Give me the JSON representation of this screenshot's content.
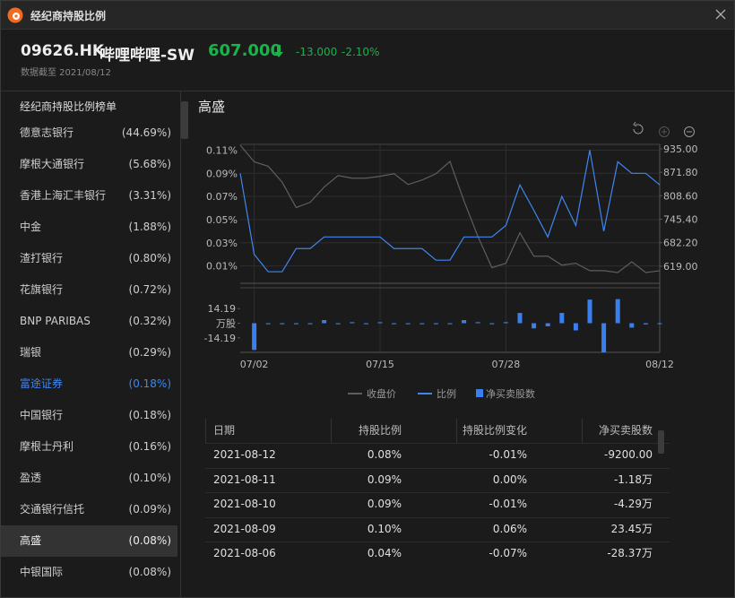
{
  "window": {
    "title": "经纪商持股比例"
  },
  "quote": {
    "symbol": "09626.HK",
    "name": "哔哩哔哩-SW",
    "price": "607.000",
    "change": "-13.000",
    "change_pct": "-2.10%",
    "as_of": "数据截至 2021/08/12"
  },
  "broker_list": {
    "title": "经纪商持股比例榜单",
    "items": [
      {
        "name": "德意志银行",
        "ratio": "(44.69%)"
      },
      {
        "name": "摩根大通银行",
        "ratio": "(5.68%)"
      },
      {
        "name": "香港上海汇丰银行",
        "ratio": "(3.31%)"
      },
      {
        "name": "中金",
        "ratio": "(1.88%)"
      },
      {
        "name": "渣打银行",
        "ratio": "(0.80%)"
      },
      {
        "name": "花旗银行",
        "ratio": "(0.72%)"
      },
      {
        "name": "BNP PARIBAS",
        "ratio": "(0.32%)"
      },
      {
        "name": "瑞银",
        "ratio": "(0.29%)"
      },
      {
        "name": "富途证券",
        "ratio": "(0.18%)"
      },
      {
        "name": "中国银行",
        "ratio": "(0.18%)"
      },
      {
        "name": "摩根士丹利",
        "ratio": "(0.16%)"
      },
      {
        "name": "盈透",
        "ratio": "(0.10%)"
      },
      {
        "name": "交通银行信托",
        "ratio": "(0.09%)"
      },
      {
        "name": "高盛",
        "ratio": "(0.08%)"
      },
      {
        "name": "中银国际",
        "ratio": "(0.08%)"
      }
    ]
  },
  "detail": {
    "title": "高盛",
    "chart": {
      "type": "line",
      "categories": [
        null,
        "07/02",
        null,
        null,
        null,
        null,
        null,
        null,
        null,
        null,
        "07/15",
        null,
        null,
        null,
        null,
        null,
        null,
        null,
        null,
        "07/28",
        null,
        null,
        null,
        null,
        null,
        null,
        null,
        null,
        null,
        null,
        "08/12"
      ],
      "ylim": [
        -0.005,
        0.115
      ],
      "yticks": [
        {
          "value": 0.11,
          "label": "0.11%"
        },
        {
          "value": 0.09,
          "label": "0.09%"
        },
        {
          "value": 0.07,
          "label": "0.07%"
        },
        {
          "value": 0.05,
          "label": "0.05%"
        },
        {
          "value": 0.03,
          "label": "0.03%"
        },
        {
          "value": 0.01,
          "label": "0.01%"
        }
      ],
      "y2lim": [
        573,
        947
      ],
      "y2ticks": [
        {
          "value": 935,
          "label": "935.00"
        },
        {
          "value": 871.8,
          "label": "871.80"
        },
        {
          "value": 808.6,
          "label": "808.60"
        },
        {
          "value": 745.4,
          "label": "745.40"
        },
        {
          "value": 682.2,
          "label": "682.20"
        },
        {
          "value": 619,
          "label": "619.00"
        }
      ],
      "grid": true,
      "series": [
        {
          "name": "收盘价",
          "color": "#5e5e5e",
          "axis": "y2",
          "values": [
            945,
            900,
            888,
            845,
            777,
            791,
            832,
            863,
            856,
            856,
            861,
            868,
            839,
            851,
            868,
            901,
            795,
            699,
            615,
            627,
            709,
            646,
            646,
            622,
            627,
            607,
            607,
            602,
            631,
            602,
            607
          ]
        },
        {
          "name": "比例",
          "color": "#3f86f0",
          "values": [
            0.09,
            0.02,
            0.005,
            0.005,
            0.025,
            0.025,
            0.035,
            0.035,
            0.035,
            0.035,
            0.035,
            0.025,
            0.025,
            0.025,
            0.015,
            0.015,
            0.035,
            0.035,
            0.035,
            0.045,
            0.08,
            0.058,
            0.035,
            0.07,
            0.045,
            0.11,
            0.04,
            0.1,
            0.09,
            0.09,
            0.08
          ]
        }
      ],
      "bars": {
        "name": "净买卖股数",
        "color": "#3a7ff0",
        "ylim": [
          -28.37,
          28.37
        ],
        "yticks": [
          14.19,
          {
            "value": 0,
            "label": "万股"
          },
          -14.19
        ],
        "values": [
          null,
          -26,
          -1,
          -1,
          -1,
          -1,
          3,
          -1,
          1,
          -1,
          1,
          -1,
          -1,
          -1,
          -1,
          -1,
          3,
          1,
          -1,
          1,
          10,
          -5,
          -3,
          10,
          -7,
          23,
          -28.37,
          23.45,
          -4.29,
          -1.18,
          -0.92
        ]
      }
    },
    "table": {
      "columns": [
        "日期",
        "持股比例",
        "持股比例变化",
        "净买卖股数"
      ],
      "rows": [
        [
          "2021-08-12",
          "0.08%",
          "-0.01%",
          "-9200.00"
        ],
        [
          "2021-08-11",
          "0.09%",
          "0.00%",
          "-1.18万"
        ],
        [
          "2021-08-10",
          "0.09%",
          "-0.01%",
          "-4.29万"
        ],
        [
          "2021-08-09",
          "0.10%",
          "0.06%",
          "23.45万"
        ],
        [
          "2021-08-06",
          "0.04%",
          "-0.07%",
          "-28.37万"
        ]
      ]
    }
  }
}
